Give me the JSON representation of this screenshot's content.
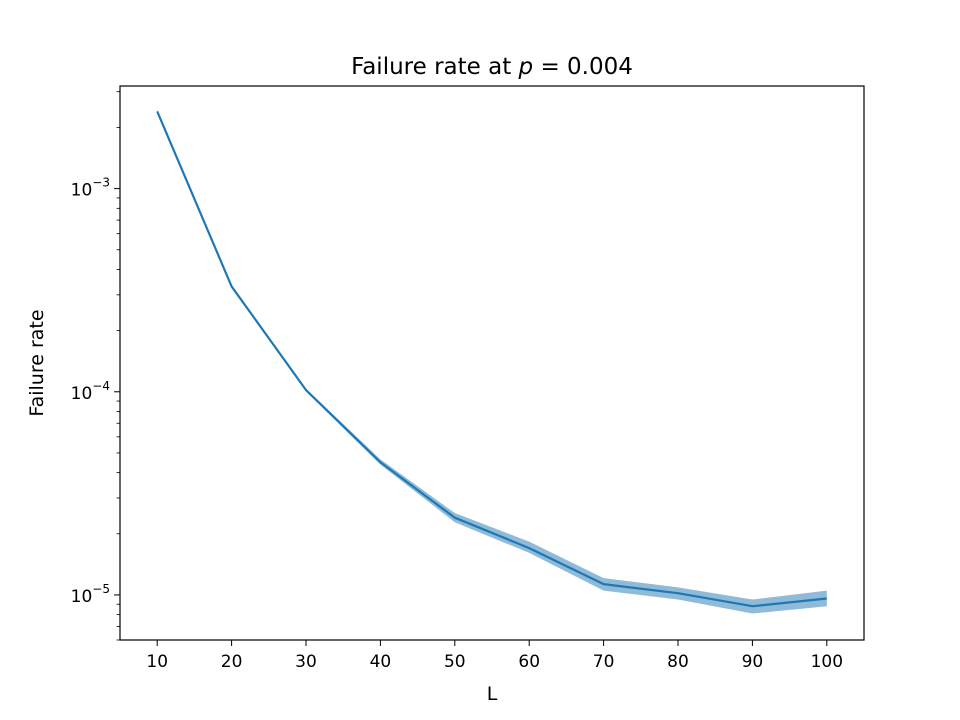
{
  "chart_data": {
    "type": "line",
    "title_prefix": "Failure rate at ",
    "title_var": "p",
    "title_suffix": " = 0.004",
    "xlabel": "L",
    "ylabel": "Failure rate",
    "y_scale": "log",
    "xlim": [
      5,
      105
    ],
    "ylim": [
      6e-06,
      0.0032
    ],
    "x_ticks": [
      10,
      20,
      30,
      40,
      50,
      60,
      70,
      80,
      90,
      100
    ],
    "y_major_ticks": [
      {
        "value": 1e-05,
        "base": "10",
        "exp": "−5"
      },
      {
        "value": 0.0001,
        "base": "10",
        "exp": "−4"
      },
      {
        "value": 0.001,
        "base": "10",
        "exp": "−3"
      }
    ],
    "grid": false,
    "series": [
      {
        "color": "#1f77b4",
        "band_color": "#1f77b4",
        "x": [
          10,
          20,
          30,
          40,
          50,
          60,
          70,
          80,
          90,
          100
        ],
        "y": [
          0.0024,
          0.00033,
          0.000102,
          4.5e-05,
          2.4e-05,
          1.7e-05,
          1.13e-05,
          1.02e-05,
          8.8e-06,
          9.6e-06
        ],
        "y_lower": [
          0.00237,
          0.000327,
          0.0001005,
          4.38e-05,
          2.28e-05,
          1.61e-05,
          1.05e-05,
          9.5e-06,
          8.1e-06,
          8.8e-06
        ],
        "y_upper": [
          0.00243,
          0.000333,
          0.0001035,
          4.65e-05,
          2.53e-05,
          1.83e-05,
          1.21e-05,
          1.09e-05,
          9.5e-06,
          1.05e-05
        ]
      }
    ]
  }
}
